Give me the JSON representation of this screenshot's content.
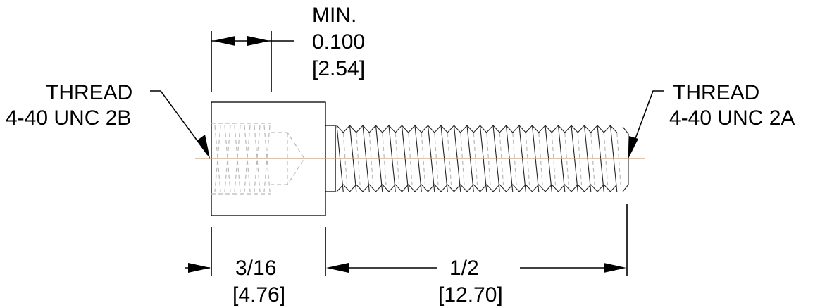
{
  "drawing": {
    "min_dim": {
      "line1": "MIN.",
      "line2": "0.100",
      "line3": "[2.54]"
    },
    "female_thread": {
      "line1": "THREAD",
      "line2": "4-40 UNC 2B"
    },
    "male_thread": {
      "line1": "THREAD",
      "line2": "4-40 UNC 2A"
    },
    "body_length": {
      "line1": "3/16",
      "line2": "[4.76]"
    },
    "stud_length": {
      "line1": "1/2",
      "line2": "[12.70]"
    }
  },
  "colors": {
    "centerline": "#c8a27a",
    "hidden_line": "#b9b9b9",
    "outline": "#000000"
  }
}
